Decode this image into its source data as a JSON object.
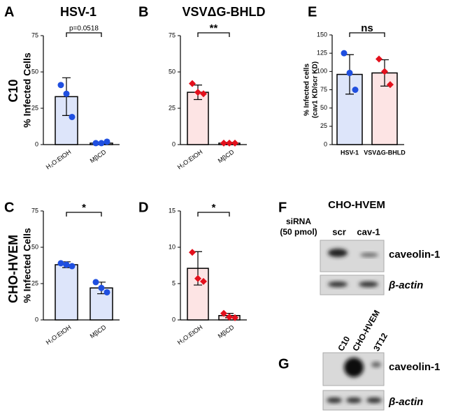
{
  "chart_data": [
    {
      "type": "bar",
      "panel": "A",
      "title": "HSV-1",
      "row_label": "C10",
      "ylabel": [
        "% Infected Cells"
      ],
      "categories": [
        "H₂O:EtOH",
        "MβCD"
      ],
      "values": [
        33,
        1
      ],
      "errors": [
        13,
        0.6
      ],
      "points": [
        [
          41,
          35,
          19
        ],
        [
          1,
          1,
          2
        ]
      ],
      "colors": [
        "#dde5fa",
        "#dde5fa"
      ],
      "point_colors": [
        "#1f4fe0",
        "#1f4fe0"
      ],
      "point_shapes": [
        "circle",
        "circle"
      ],
      "ylim": [
        0,
        75
      ],
      "yticks": [
        0,
        25,
        50,
        75
      ],
      "annotation": "p=0.0518"
    },
    {
      "type": "bar",
      "panel": "B",
      "title": "VSVΔG-BHLD",
      "categories": [
        "H₂O:EtOH",
        "MβCD"
      ],
      "values": [
        36,
        1
      ],
      "errors": [
        5,
        0.5
      ],
      "points": [
        [
          42,
          36,
          35
        ],
        [
          1,
          1,
          1
        ]
      ],
      "colors": [
        "#fde4e4",
        "#fde4e4"
      ],
      "point_colors": [
        "#e3101c",
        "#e3101c"
      ],
      "point_shapes": [
        "diamond",
        "diamond"
      ],
      "ylim": [
        0,
        75
      ],
      "yticks": [
        0,
        25,
        50,
        75
      ],
      "annotation": "**"
    },
    {
      "type": "bar",
      "panel": "E",
      "ylabel": [
        "% Infected cells",
        "(cav1 KD/scr KD)"
      ],
      "categories": [
        "HSV-1",
        "VSVΔG-BHLD"
      ],
      "values": [
        96,
        98
      ],
      "errors": [
        27,
        18
      ],
      "points": [
        [
          125,
          98,
          75
        ],
        [
          117,
          100,
          82
        ]
      ],
      "colors": [
        "#dde5fa",
        "#fde4e4"
      ],
      "point_colors": [
        "#1f4fe0",
        "#e3101c"
      ],
      "point_shapes": [
        "circle",
        "diamond"
      ],
      "ylim": [
        0,
        150
      ],
      "yticks": [
        0,
        25,
        50,
        75,
        100,
        125,
        150
      ],
      "annotation": "ns"
    },
    {
      "type": "bar",
      "panel": "C",
      "row_label": "CHO-HVEM",
      "ylabel": [
        "% Infected Cells"
      ],
      "categories": [
        "H₂O:EtOH",
        "MβCD"
      ],
      "values": [
        38,
        22
      ],
      "errors": [
        2,
        4
      ],
      "points": [
        [
          39,
          38,
          37
        ],
        [
          26,
          22,
          19
        ]
      ],
      "colors": [
        "#dde5fa",
        "#dde5fa"
      ],
      "point_colors": [
        "#1f4fe0",
        "#1f4fe0"
      ],
      "point_shapes": [
        "circle",
        "circle"
      ],
      "ylim": [
        0,
        75
      ],
      "yticks": [
        0,
        25,
        50,
        75
      ],
      "annotation": "*"
    },
    {
      "type": "bar",
      "panel": "D",
      "categories": [
        "H₂O:EtOH",
        "MβCD"
      ],
      "values": [
        7.1,
        0.6
      ],
      "errors": [
        2.3,
        0.3
      ],
      "points": [
        [
          9.3,
          5.7,
          5.3
        ],
        [
          0.9,
          0.4,
          0.3
        ]
      ],
      "colors": [
        "#fde4e4",
        "#fde4e4"
      ],
      "point_colors": [
        "#e3101c",
        "#e3101c"
      ],
      "point_shapes": [
        "diamond",
        "diamond"
      ],
      "ylim": [
        0,
        15
      ],
      "yticks": [
        0,
        5,
        10,
        15
      ],
      "annotation": "*"
    }
  ],
  "blots": {
    "F": {
      "panel": "F",
      "title": "CHO-HVEM",
      "condition": [
        "siRNA",
        "(50 pmol)"
      ],
      "lanes": [
        "scr",
        "cav-1"
      ],
      "bands": [
        "caveolin-1",
        "β-actin"
      ]
    },
    "G": {
      "panel": "G",
      "lanes": [
        "C10",
        "CHO-HVEM",
        "3T12"
      ],
      "bands": [
        "caveolin-1",
        "β-actin"
      ]
    }
  }
}
